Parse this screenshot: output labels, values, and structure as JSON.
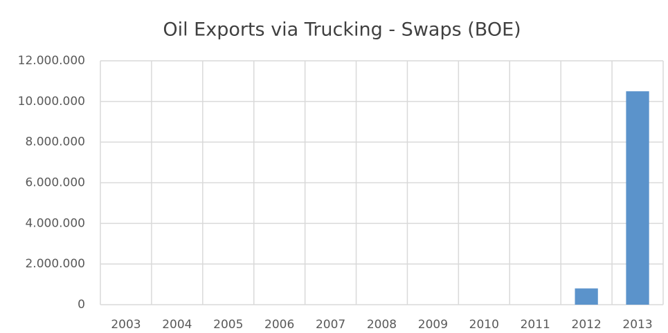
{
  "chart_data": {
    "type": "bar",
    "title": "Oil Exports via Trucking - Swaps (BOE)",
    "categories": [
      "2003",
      "2004",
      "2005",
      "2006",
      "2007",
      "2008",
      "2009",
      "2010",
      "2011",
      "2012",
      "2013"
    ],
    "values": [
      0,
      0,
      0,
      0,
      0,
      0,
      0,
      0,
      0,
      800000,
      10500000
    ],
    "color": "#5b93cb",
    "ylim": [
      0,
      12000000
    ],
    "yticks": [
      0,
      {
        "value": 2000000,
        "label": "2.000.000"
      },
      {
        "value": 4000000,
        "label": "4.000.000"
      },
      {
        "value": 6000000,
        "label": "6.000.000"
      },
      {
        "value": 8000000,
        "label": "8.000.000"
      },
      {
        "value": 10000000,
        "label": "10.000.000"
      },
      {
        "value": 12000000,
        "label": "12.000.000"
      }
    ],
    "grid": true
  }
}
